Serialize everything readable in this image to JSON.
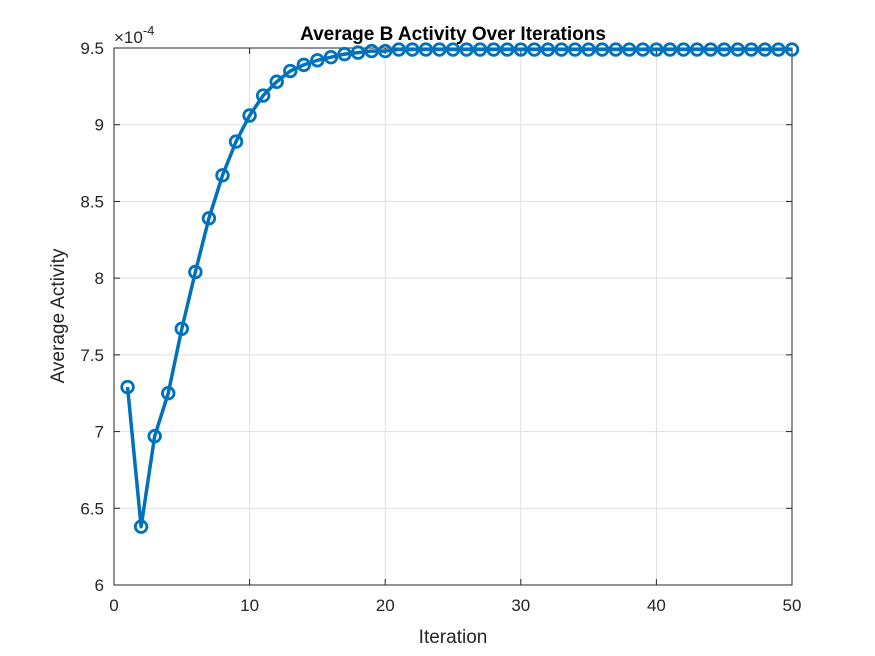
{
  "chart_data": {
    "type": "line",
    "title": "Average B Activity Over Iterations",
    "xlabel": "Iteration",
    "ylabel": "Average Activity",
    "exponent_multiplier": "×10",
    "exponent_power": "-4",
    "xlim": [
      0,
      50
    ],
    "ylim": [
      6,
      9.5
    ],
    "x_ticks": [
      0,
      10,
      20,
      30,
      40,
      50
    ],
    "y_ticks": [
      6,
      6.5,
      7,
      7.5,
      8,
      8.5,
      9,
      9.5
    ],
    "grid": true,
    "series": [
      {
        "marker": "circle",
        "color": "#0072BD",
        "x": [
          1,
          2,
          3,
          4,
          5,
          6,
          7,
          8,
          9,
          10,
          11,
          12,
          13,
          14,
          15,
          16,
          17,
          18,
          19,
          20,
          21,
          22,
          23,
          24,
          25,
          26,
          27,
          28,
          29,
          30,
          31,
          32,
          33,
          34,
          35,
          36,
          37,
          38,
          39,
          40,
          41,
          42,
          43,
          44,
          45,
          46,
          47,
          48,
          49,
          50
        ],
        "values": [
          7.29,
          6.38,
          6.97,
          7.25,
          7.67,
          8.04,
          8.39,
          8.67,
          8.89,
          9.06,
          9.19,
          9.28,
          9.35,
          9.39,
          9.42,
          9.44,
          9.46,
          9.47,
          9.48,
          9.48,
          9.49,
          9.49,
          9.49,
          9.49,
          9.49,
          9.49,
          9.49,
          9.49,
          9.49,
          9.49,
          9.49,
          9.49,
          9.49,
          9.49,
          9.49,
          9.49,
          9.49,
          9.49,
          9.49,
          9.49,
          9.49,
          9.49,
          9.49,
          9.49,
          9.49,
          9.49,
          9.49,
          9.49,
          9.49,
          9.49
        ]
      }
    ]
  }
}
